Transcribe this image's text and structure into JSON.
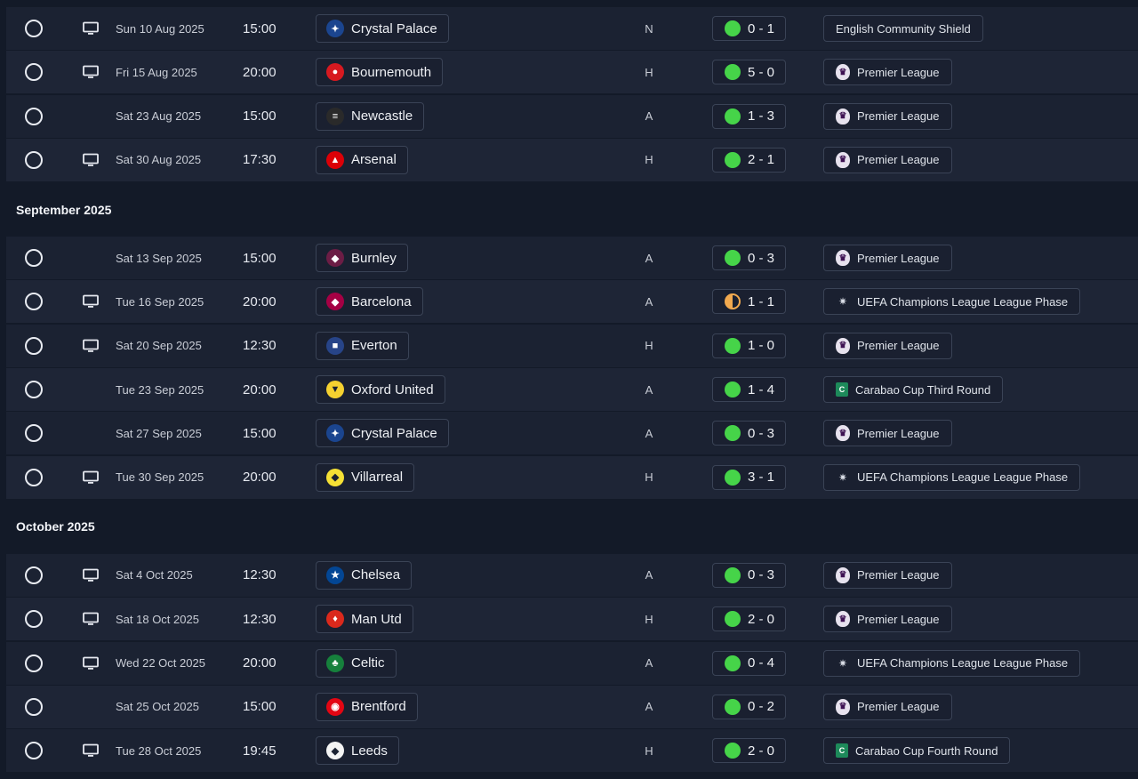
{
  "groups": [
    {
      "month": "",
      "fixtures": [
        {
          "date": "Sun 10 Aug 2025",
          "time": "15:00",
          "tv": true,
          "team": "Crystal Palace",
          "crest_color": "#1b458f",
          "crest_icon": "eagle",
          "venue": "N",
          "score": "0 - 1",
          "outcome": "win",
          "competition": "English Community Shield",
          "comp_icon": "none"
        },
        {
          "date": "Fri 15 Aug 2025",
          "time": "20:00",
          "tv": true,
          "team": "Bournemouth",
          "crest_color": "#d71920",
          "crest_icon": "cherry",
          "venue": "H",
          "score": "5 - 0",
          "outcome": "win",
          "competition": "Premier League",
          "comp_icon": "pl"
        },
        {
          "date": "Sat 23 Aug 2025",
          "time": "15:00",
          "tv": false,
          "team": "Newcastle",
          "crest_color": "#2a2a2a",
          "crest_icon": "magpie",
          "venue": "A",
          "score": "1 - 3",
          "outcome": "win",
          "competition": "Premier League",
          "comp_icon": "pl"
        },
        {
          "date": "Sat 30 Aug 2025",
          "time": "17:30",
          "tv": true,
          "team": "Arsenal",
          "crest_color": "#db0007",
          "crest_icon": "cannon",
          "venue": "H",
          "score": "2 - 1",
          "outcome": "win",
          "competition": "Premier League",
          "comp_icon": "pl"
        }
      ]
    },
    {
      "month": "September 2025",
      "fixtures": [
        {
          "date": "Sat 13 Sep 2025",
          "time": "15:00",
          "tv": false,
          "team": "Burnley",
          "crest_color": "#6c1d45",
          "crest_icon": "shield",
          "venue": "A",
          "score": "0 - 3",
          "outcome": "win",
          "competition": "Premier League",
          "comp_icon": "pl"
        },
        {
          "date": "Tue 16 Sep 2025",
          "time": "20:00",
          "tv": true,
          "team": "Barcelona",
          "crest_color": "#a50044",
          "crest_icon": "shield",
          "venue": "A",
          "score": "1 - 1",
          "outcome": "draw",
          "competition": "UEFA Champions League League Phase",
          "comp_icon": "ucl"
        },
        {
          "date": "Sat 20 Sep 2025",
          "time": "12:30",
          "tv": true,
          "team": "Everton",
          "crest_color": "#274488",
          "crest_icon": "tower",
          "venue": "H",
          "score": "1 - 0",
          "outcome": "win",
          "competition": "Premier League",
          "comp_icon": "pl"
        },
        {
          "date": "Tue 23 Sep 2025",
          "time": "20:00",
          "tv": false,
          "team": "Oxford United",
          "crest_color": "#f5d130",
          "crest_icon": "ox",
          "venue": "A",
          "score": "1 - 4",
          "outcome": "win",
          "competition": "Carabao Cup Third Round",
          "comp_icon": "cb"
        },
        {
          "date": "Sat 27 Sep 2025",
          "time": "15:00",
          "tv": false,
          "team": "Crystal Palace",
          "crest_color": "#1b458f",
          "crest_icon": "eagle",
          "venue": "A",
          "score": "0 - 3",
          "outcome": "win",
          "competition": "Premier League",
          "comp_icon": "pl"
        },
        {
          "date": "Tue 30 Sep 2025",
          "time": "20:00",
          "tv": true,
          "team": "Villarreal",
          "crest_color": "#f5e035",
          "crest_icon": "shield",
          "venue": "H",
          "score": "3 - 1",
          "outcome": "win",
          "competition": "UEFA Champions League League Phase",
          "comp_icon": "ucl"
        }
      ]
    },
    {
      "month": "October 2025",
      "fixtures": [
        {
          "date": "Sat 4 Oct 2025",
          "time": "12:30",
          "tv": true,
          "team": "Chelsea",
          "crest_color": "#034694",
          "crest_icon": "lion",
          "venue": "A",
          "score": "0 - 3",
          "outcome": "win",
          "competition": "Premier League",
          "comp_icon": "pl"
        },
        {
          "date": "Sat 18 Oct 2025",
          "time": "12:30",
          "tv": true,
          "team": "Man Utd",
          "crest_color": "#da291c",
          "crest_icon": "devil",
          "venue": "H",
          "score": "2 - 0",
          "outcome": "win",
          "competition": "Premier League",
          "comp_icon": "pl"
        },
        {
          "date": "Wed 22 Oct 2025",
          "time": "20:00",
          "tv": true,
          "team": "Celtic",
          "crest_color": "#16803c",
          "crest_icon": "clover",
          "venue": "A",
          "score": "0 - 4",
          "outcome": "win",
          "competition": "UEFA Champions League League Phase",
          "comp_icon": "ucl"
        },
        {
          "date": "Sat 25 Oct 2025",
          "time": "15:00",
          "tv": false,
          "team": "Brentford",
          "crest_color": "#e30613",
          "crest_icon": "bee",
          "venue": "A",
          "score": "0 - 2",
          "outcome": "win",
          "competition": "Premier League",
          "comp_icon": "pl"
        },
        {
          "date": "Tue 28 Oct 2025",
          "time": "19:45",
          "tv": true,
          "team": "Leeds",
          "crest_color": "#f4f4f4",
          "crest_icon": "shield",
          "venue": "H",
          "score": "2 - 0",
          "outcome": "win",
          "competition": "Carabao Cup Fourth Round",
          "comp_icon": "cb"
        }
      ]
    }
  ],
  "colors": {
    "win": "#46d449",
    "draw": "#f1a94f",
    "background": "#131a28",
    "row": "#1b2232"
  }
}
